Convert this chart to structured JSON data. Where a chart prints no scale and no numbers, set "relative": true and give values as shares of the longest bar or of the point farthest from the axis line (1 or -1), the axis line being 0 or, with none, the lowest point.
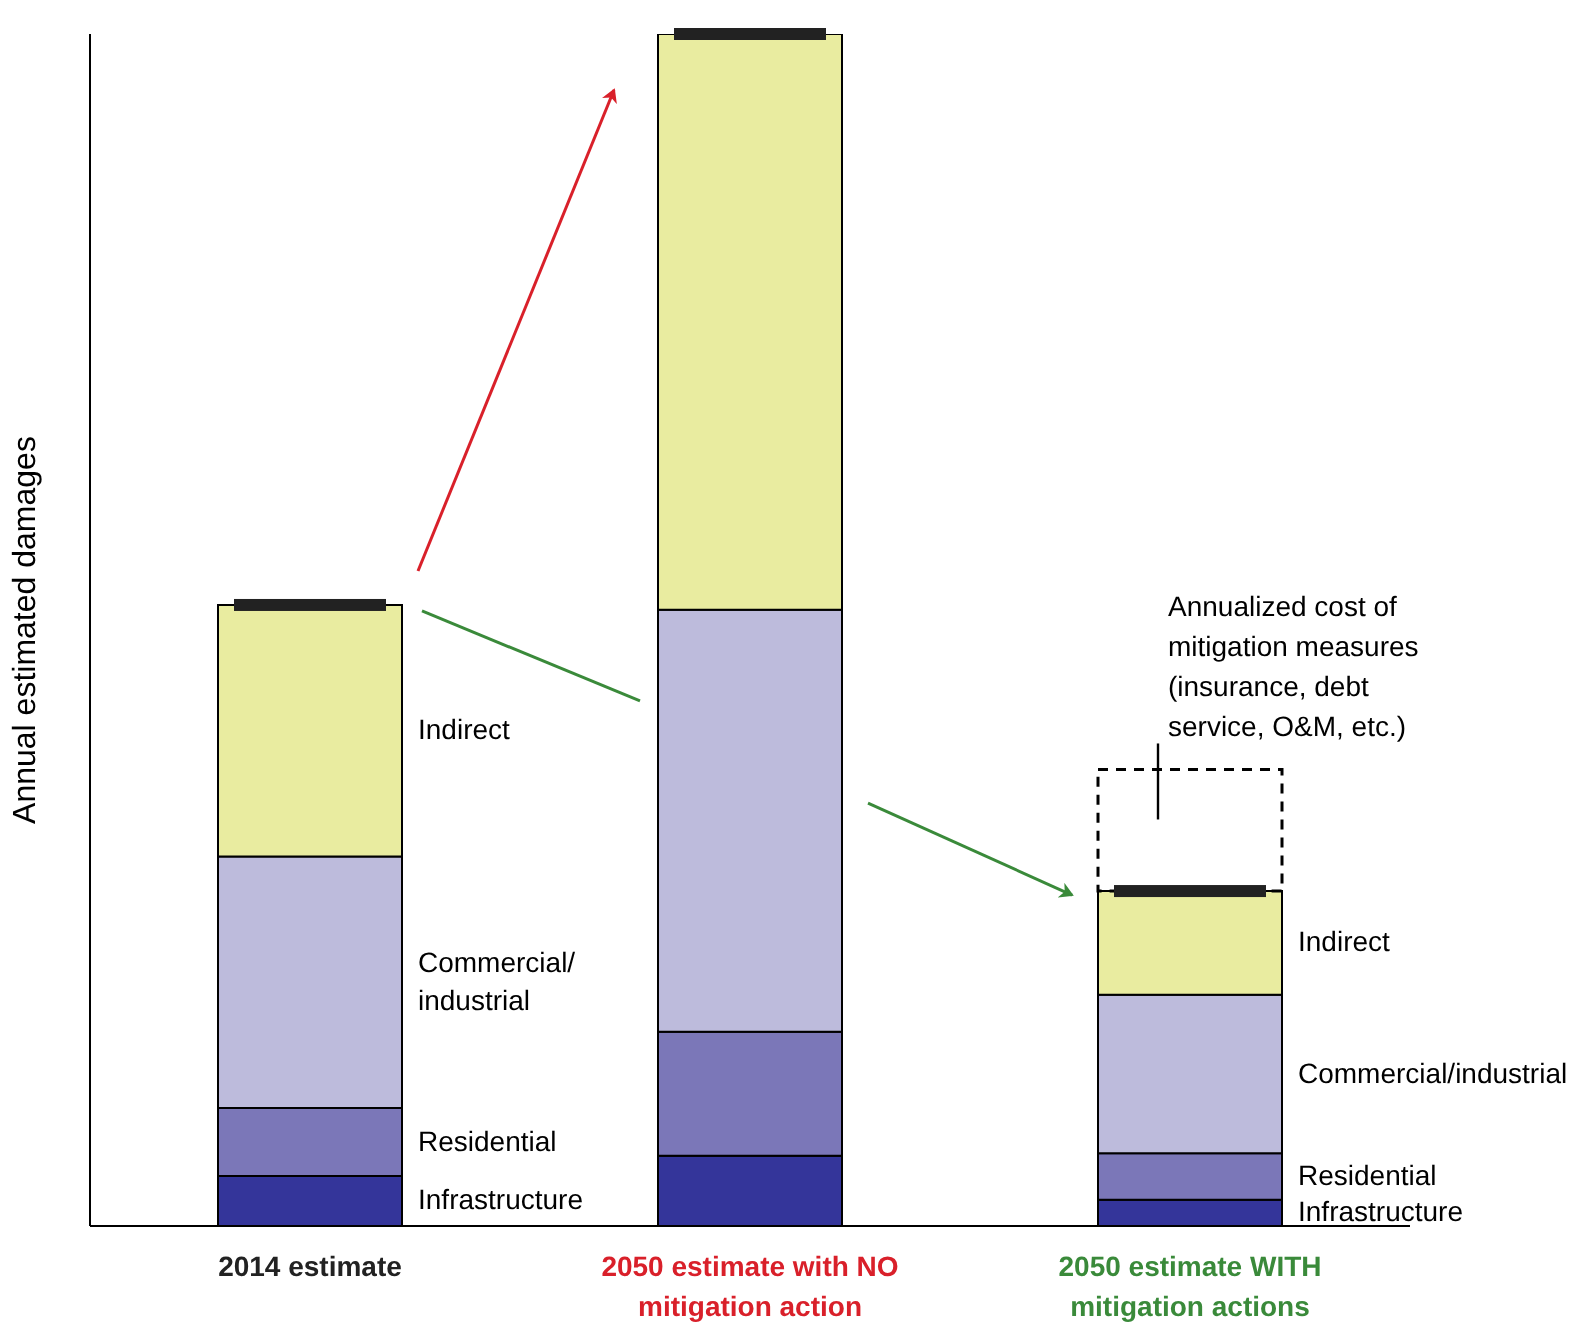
{
  "chart_data": {
    "type": "bar",
    "relative": true,
    "stacked": true,
    "ylabel": "Annual estimated damages",
    "categories": [
      "2014 estimate",
      "2050 estimate with NO mitigation action",
      "2050 estimate WITH mitigation actions"
    ],
    "series": [
      {
        "name": "Infrastructure",
        "color": "#34359a",
        "values": [
          0.042,
          0.059,
          0.022
        ]
      },
      {
        "name": "Residential",
        "color": "#7b77b8",
        "values": [
          0.057,
          0.104,
          0.039
        ]
      },
      {
        "name": "Commercial/industrial",
        "color": "#bdbbdc",
        "values": [
          0.211,
          0.354,
          0.133
        ]
      },
      {
        "name": "Indirect",
        "color": "#e9eca0",
        "values": [
          0.211,
          0.483,
          0.087
        ]
      },
      {
        "color": "#000000",
        "line_style": "dashed",
        "values": [
          null,
          null,
          0.102
        ]
      }
    ],
    "annotations": [
      "Annualized cost of mitigation measures (insurance, debt service, O&M, etc.)"
    ],
    "legend": false,
    "grid": false
  }
}
